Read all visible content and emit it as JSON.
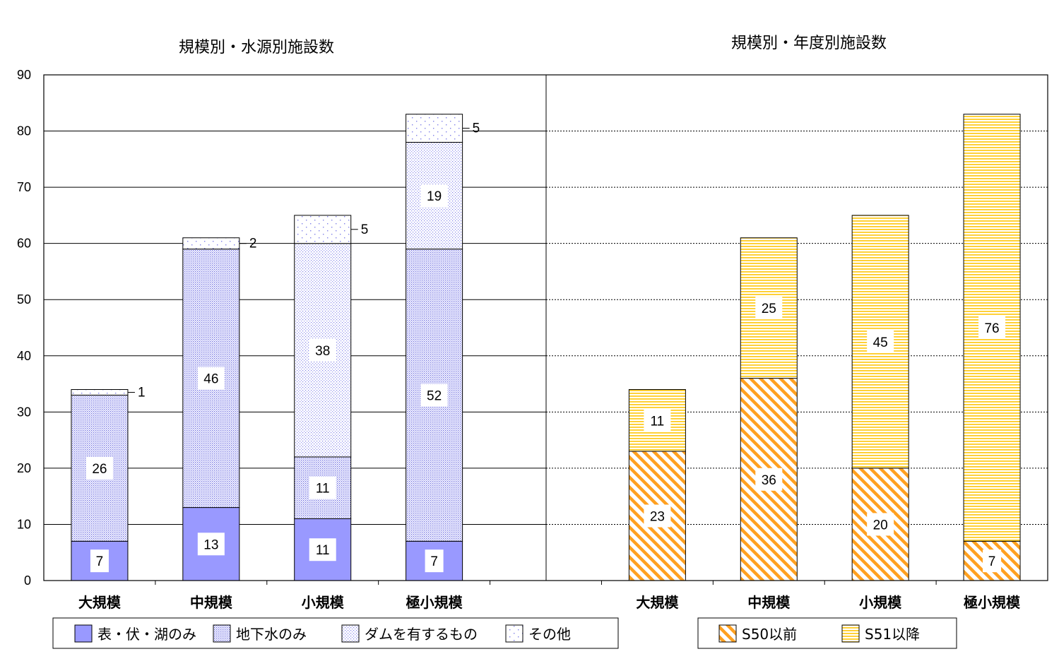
{
  "chart_data": [
    {
      "type": "bar",
      "stacked": true,
      "title": "規模別・水源別施設数",
      "categories": [
        "大規模",
        "中規模",
        "小規模",
        "極小規模"
      ],
      "series": [
        {
          "name": "表・伏・湖のみ",
          "values": [
            7,
            13,
            11,
            7
          ],
          "color": "#9999ff",
          "pattern": "solid"
        },
        {
          "name": "地下水のみ",
          "values": [
            26,
            46,
            11,
            52
          ],
          "color": "#9999ff",
          "pattern": "dense-dots"
        },
        {
          "name": "ダムを有するもの",
          "values": [
            0,
            0,
            38,
            19
          ],
          "color": "#9999ff",
          "pattern": "light-dots"
        },
        {
          "name": "その他",
          "values": [
            1,
            2,
            5,
            5
          ],
          "color": "#9999ff",
          "pattern": "sparse-dots"
        }
      ],
      "ylim": [
        0,
        90
      ],
      "yticks": [
        0,
        10,
        20,
        30,
        40,
        50,
        60,
        70,
        80,
        90
      ],
      "grid": true,
      "legend": "bottom"
    },
    {
      "type": "bar",
      "stacked": true,
      "title": "規模別・年度別施設数",
      "categories": [
        "大規模",
        "中規模",
        "小規模",
        "極小規模"
      ],
      "series": [
        {
          "name": "S50以前",
          "values": [
            23,
            36,
            20,
            7
          ],
          "color": "#ffa500",
          "pattern": "diagonal-stripes"
        },
        {
          "name": "S51以降",
          "values": [
            11,
            25,
            45,
            76
          ],
          "color": "#ffcc00",
          "pattern": "horizontal-stripes"
        }
      ],
      "ylim": [
        0,
        90
      ],
      "grid": true,
      "legend": "bottom"
    }
  ]
}
